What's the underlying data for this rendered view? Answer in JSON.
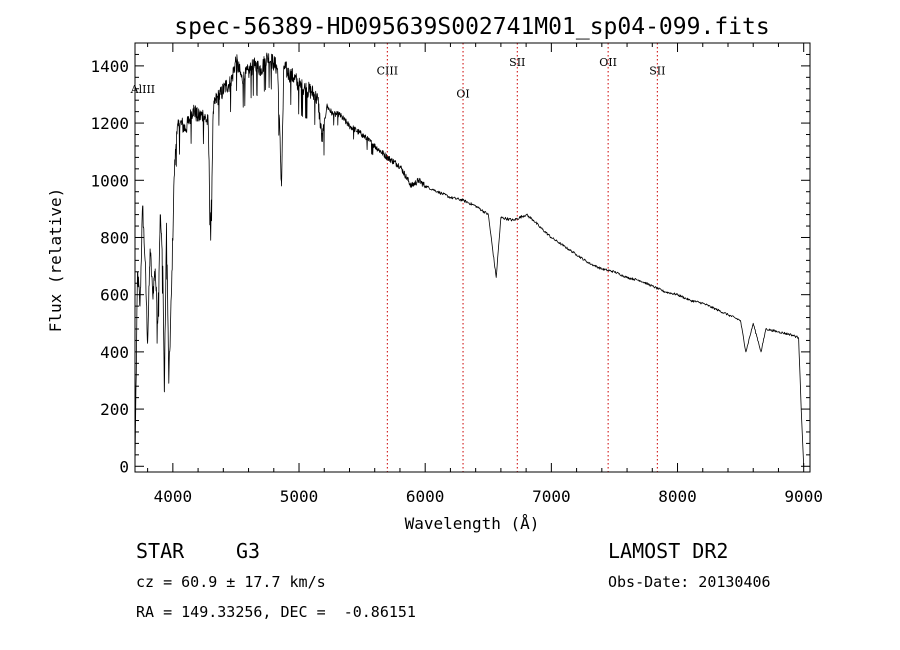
{
  "colors": {
    "axes": "#000000",
    "spectrum": "#000000",
    "line_markers": "#cc0000"
  },
  "chart_data": {
    "type": "line",
    "title": "spec-56389-HD095639S002741M01_sp04-099.fits",
    "xlabel": "Wavelength (Å)",
    "ylabel": "Flux (relative)",
    "xlim": [
      3700,
      9050
    ],
    "ylim": [
      -20,
      1480
    ],
    "xticks": [
      4000,
      5000,
      6000,
      7000,
      8000,
      9000
    ],
    "yticks": [
      0,
      200,
      400,
      600,
      800,
      1000,
      1200,
      1400
    ],
    "grid": false,
    "series": [
      {
        "x": [
          3700,
          3720,
          3740,
          3760,
          3780,
          3800,
          3820,
          3840,
          3860,
          3880,
          3900,
          3920,
          3933,
          3950,
          3968,
          3990,
          4010,
          4030,
          4060,
          4100,
          4130,
          4160,
          4200,
          4240,
          4280,
          4300,
          4320,
          4340,
          4380,
          4420,
          4460,
          4500,
          4550,
          4600,
          4650,
          4700,
          4750,
          4800,
          4830,
          4861,
          4880,
          4920,
          4960,
          5000,
          5050,
          5100,
          5150,
          5183,
          5220,
          5270,
          5320,
          5400,
          5500,
          5600,
          5700,
          5800,
          5890,
          5950,
          6000,
          6100,
          6200,
          6300,
          6400,
          6500,
          6563,
          6600,
          6700,
          6800,
          6860,
          6900,
          7000,
          7100,
          7200,
          7300,
          7400,
          7500,
          7600,
          7700,
          7800,
          7900,
          8000,
          8100,
          8200,
          8300,
          8400,
          8498,
          8542,
          8600,
          8662,
          8700,
          8800,
          8900,
          8960,
          8980,
          9000
        ],
        "y": [
          0,
          680,
          560,
          910,
          720,
          430,
          760,
          600,
          690,
          500,
          880,
          700,
          260,
          850,
          290,
          620,
          1010,
          1170,
          1200,
          1180,
          1210,
          1250,
          1220,
          1230,
          1200,
          790,
          1240,
          1280,
          1300,
          1330,
          1340,
          1420,
          1350,
          1380,
          1400,
          1390,
          1430,
          1410,
          1390,
          980,
          1400,
          1370,
          1360,
          1330,
          1320,
          1310,
          1280,
          1140,
          1260,
          1230,
          1230,
          1190,
          1160,
          1120,
          1080,
          1050,
          980,
          1000,
          980,
          960,
          940,
          930,
          910,
          880,
          660,
          870,
          860,
          880,
          860,
          840,
          800,
          770,
          740,
          710,
          690,
          680,
          660,
          650,
          630,
          610,
          600,
          580,
          570,
          550,
          530,
          510,
          400,
          500,
          400,
          480,
          470,
          460,
          450,
          200,
          0
        ]
      }
    ],
    "line_markers": [
      {
        "label": "AlIII",
        "x": 3715,
        "label_y": 1305,
        "line": false
      },
      {
        "label": "CIII",
        "x": 5700,
        "label_y": 1370,
        "line": true
      },
      {
        "label": "OI",
        "x": 6300,
        "label_y": 1290,
        "line": true
      },
      {
        "label": "SII",
        "x": 6730,
        "label_y": 1400,
        "line": true
      },
      {
        "label": "OII",
        "x": 7450,
        "label_y": 1400,
        "line": true
      },
      {
        "label": "SII",
        "x": 7840,
        "label_y": 1370,
        "line": true
      }
    ]
  },
  "info": {
    "object_class": "STAR",
    "subclass": "G3",
    "survey": "LAMOST DR2",
    "cz": "cz = 60.9 ± 17.7 km/s",
    "obs_date": "Obs-Date: 20130406",
    "coords": "RA = 149.33256, DEC =  -0.86151"
  }
}
